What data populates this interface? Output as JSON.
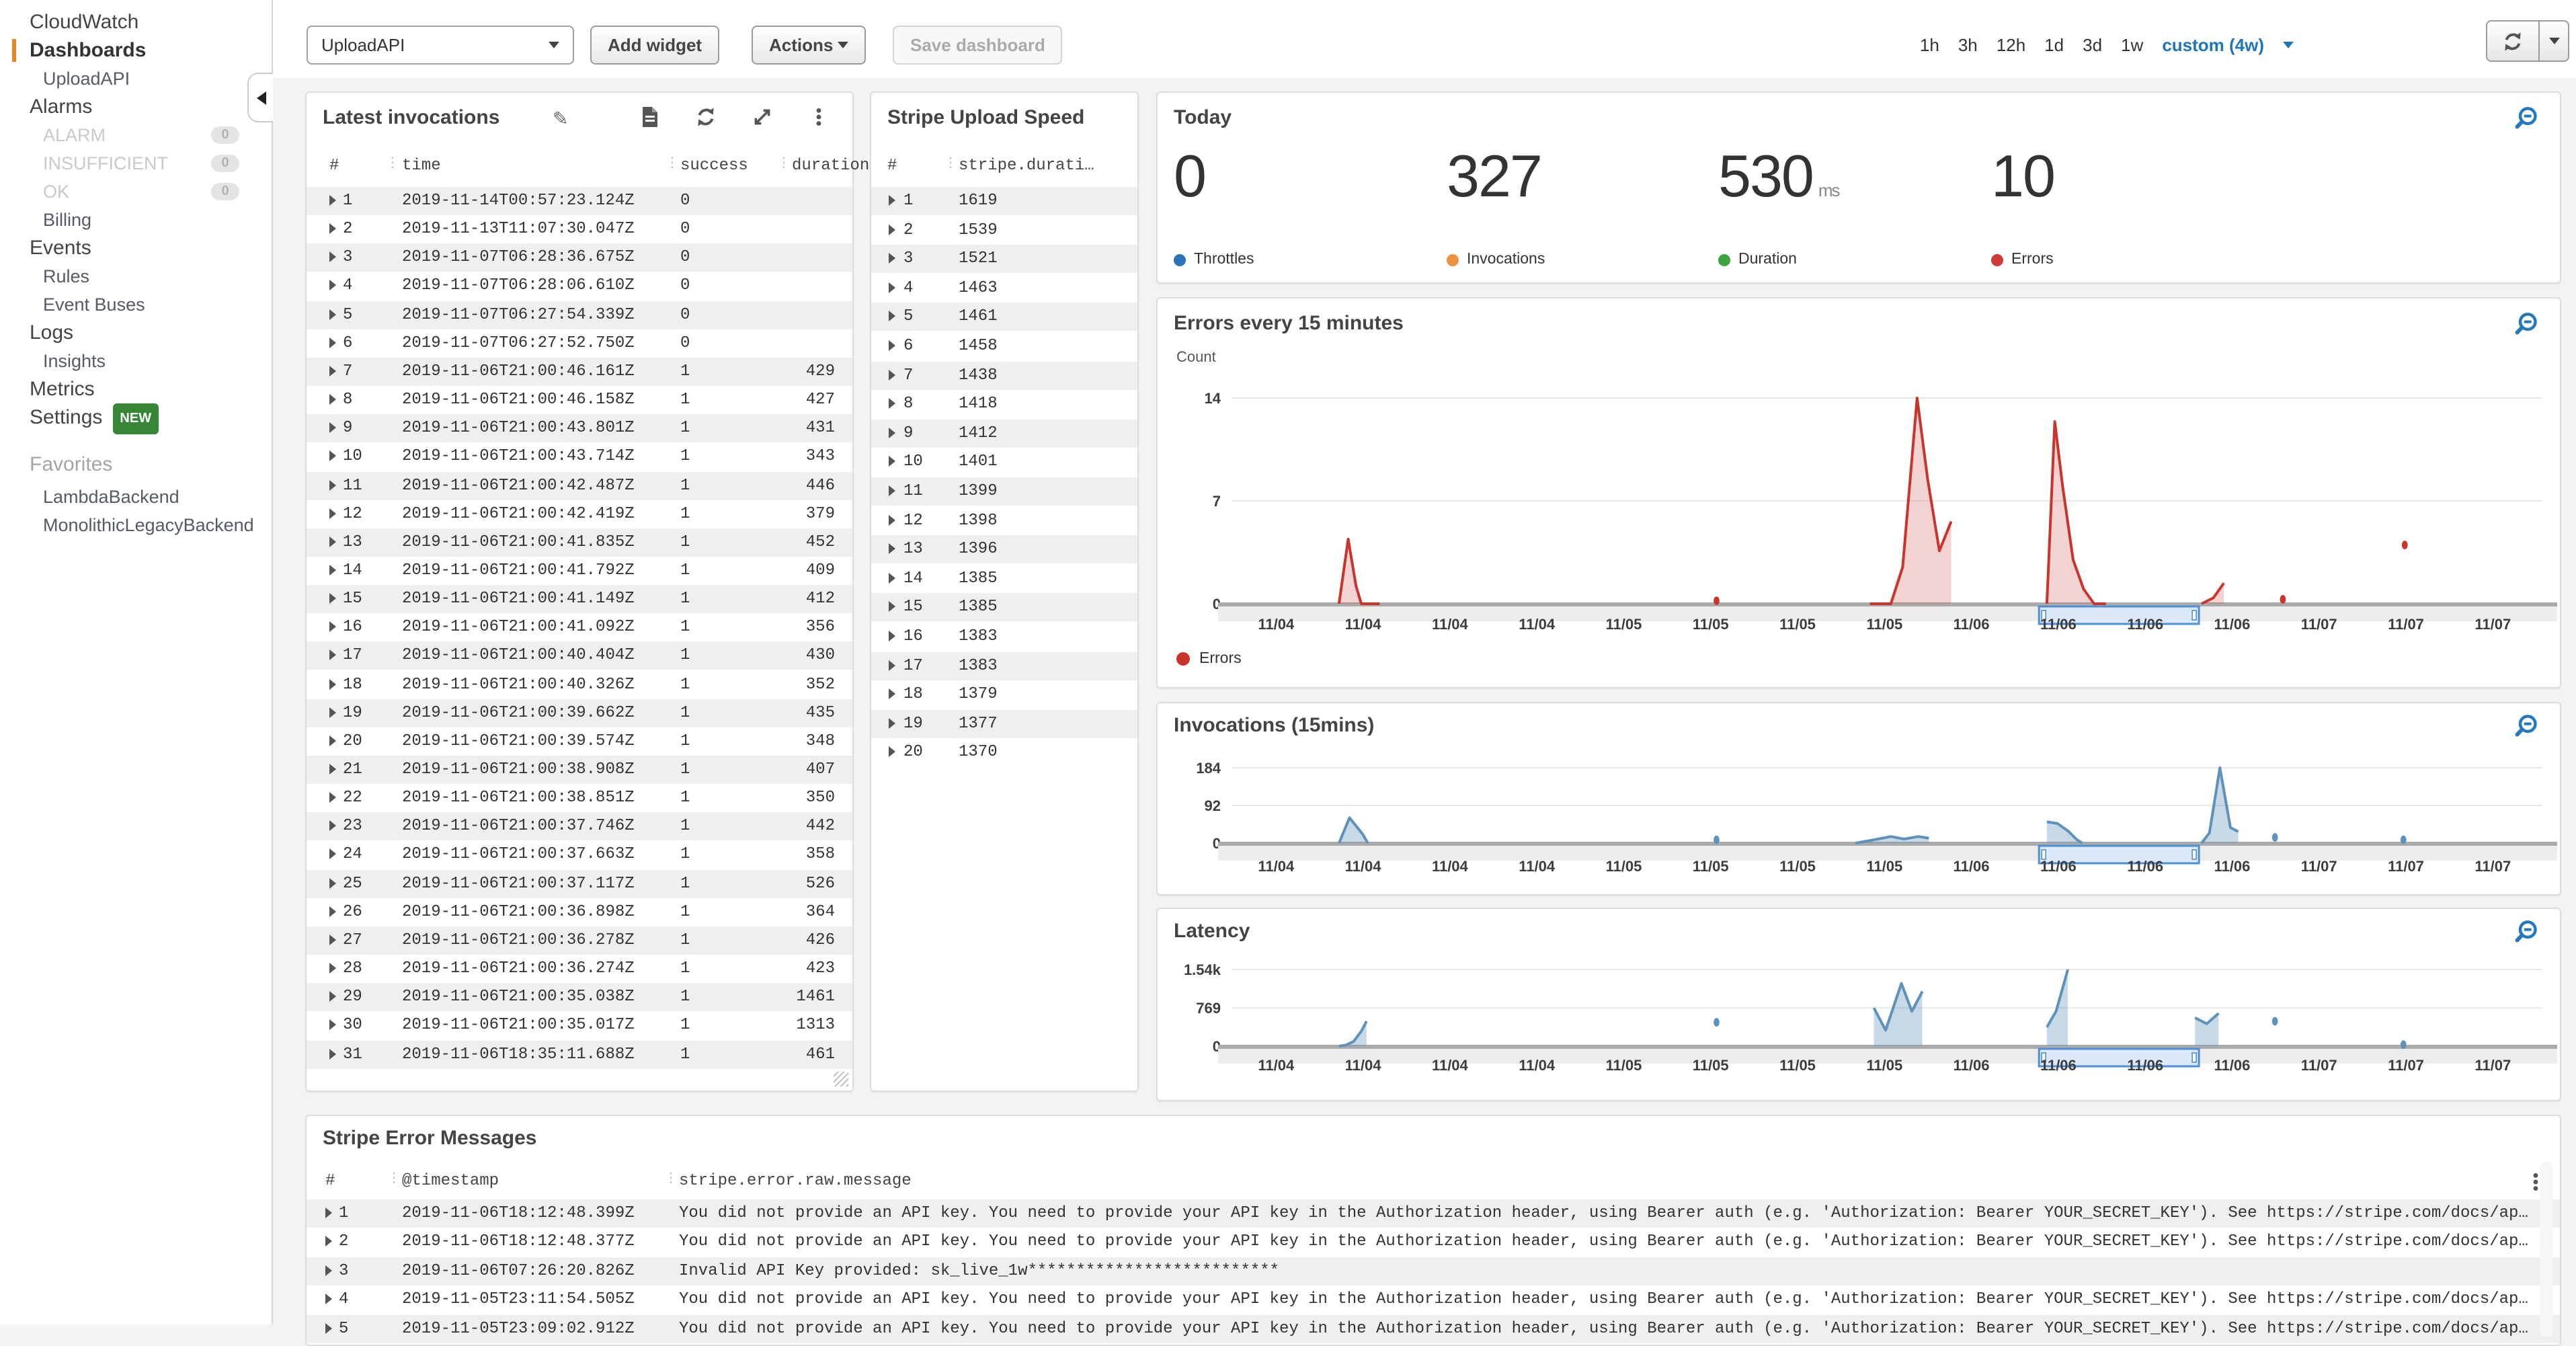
{
  "sidebar": {
    "title": "CloudWatch",
    "items": [
      {
        "label": "CloudWatch",
        "kind": "title"
      },
      {
        "label": "Dashboards",
        "kind": "section-active"
      },
      {
        "label": "UploadAPI",
        "kind": "sub"
      },
      {
        "label": "Alarms",
        "kind": "section"
      },
      {
        "label": "ALARM",
        "kind": "sub-muted",
        "badge": "0"
      },
      {
        "label": "INSUFFICIENT",
        "kind": "sub-muted",
        "badge": "0"
      },
      {
        "label": "OK",
        "kind": "sub-muted",
        "badge": "0"
      },
      {
        "label": "Billing",
        "kind": "sub"
      },
      {
        "label": "Events",
        "kind": "section"
      },
      {
        "label": "Rules",
        "kind": "sub"
      },
      {
        "label": "Event Buses",
        "kind": "sub"
      },
      {
        "label": "Logs",
        "kind": "section"
      },
      {
        "label": "Insights",
        "kind": "sub"
      },
      {
        "label": "Metrics",
        "kind": "section"
      },
      {
        "label": "Settings",
        "kind": "section",
        "badge_new": "NEW"
      },
      {
        "label": "Favorites",
        "kind": "group"
      },
      {
        "label": "LambdaBackend",
        "kind": "sub"
      },
      {
        "label": "MonolithicLegacyBackend",
        "kind": "sub"
      }
    ]
  },
  "topbar": {
    "dashboard_select": {
      "value": "UploadAPI"
    },
    "add_widget_label": "Add widget",
    "actions_label": "Actions",
    "save_label": "Save dashboard",
    "ranges": [
      "1h",
      "3h",
      "12h",
      "1d",
      "3d",
      "1w"
    ],
    "custom_label": "custom (4w)",
    "accent_blue": "#2074b8"
  },
  "widgets": {
    "latest_invocations": {
      "title": "Latest invocations",
      "columns": [
        "#",
        "time",
        "success",
        "duration"
      ],
      "rows": [
        [
          "1",
          "2019-11-14T00:57:23.124Z",
          "0",
          ""
        ],
        [
          "2",
          "2019-11-13T11:07:30.047Z",
          "0",
          ""
        ],
        [
          "3",
          "2019-11-07T06:28:36.675Z",
          "0",
          ""
        ],
        [
          "4",
          "2019-11-07T06:28:06.610Z",
          "0",
          ""
        ],
        [
          "5",
          "2019-11-07T06:27:54.339Z",
          "0",
          ""
        ],
        [
          "6",
          "2019-11-07T06:27:52.750Z",
          "0",
          ""
        ],
        [
          "7",
          "2019-11-06T21:00:46.161Z",
          "1",
          "429"
        ],
        [
          "8",
          "2019-11-06T21:00:46.158Z",
          "1",
          "427"
        ],
        [
          "9",
          "2019-11-06T21:00:43.801Z",
          "1",
          "431"
        ],
        [
          "10",
          "2019-11-06T21:00:43.714Z",
          "1",
          "343"
        ],
        [
          "11",
          "2019-11-06T21:00:42.487Z",
          "1",
          "446"
        ],
        [
          "12",
          "2019-11-06T21:00:42.419Z",
          "1",
          "379"
        ],
        [
          "13",
          "2019-11-06T21:00:41.835Z",
          "1",
          "452"
        ],
        [
          "14",
          "2019-11-06T21:00:41.792Z",
          "1",
          "409"
        ],
        [
          "15",
          "2019-11-06T21:00:41.149Z",
          "1",
          "412"
        ],
        [
          "16",
          "2019-11-06T21:00:41.092Z",
          "1",
          "356"
        ],
        [
          "17",
          "2019-11-06T21:00:40.404Z",
          "1",
          "430"
        ],
        [
          "18",
          "2019-11-06T21:00:40.326Z",
          "1",
          "352"
        ],
        [
          "19",
          "2019-11-06T21:00:39.662Z",
          "1",
          "435"
        ],
        [
          "20",
          "2019-11-06T21:00:39.574Z",
          "1",
          "348"
        ],
        [
          "21",
          "2019-11-06T21:00:38.908Z",
          "1",
          "407"
        ],
        [
          "22",
          "2019-11-06T21:00:38.851Z",
          "1",
          "350"
        ],
        [
          "23",
          "2019-11-06T21:00:37.746Z",
          "1",
          "442"
        ],
        [
          "24",
          "2019-11-06T21:00:37.663Z",
          "1",
          "358"
        ],
        [
          "25",
          "2019-11-06T21:00:37.117Z",
          "1",
          "526"
        ],
        [
          "26",
          "2019-11-06T21:00:36.898Z",
          "1",
          "364"
        ],
        [
          "27",
          "2019-11-06T21:00:36.278Z",
          "1",
          "426"
        ],
        [
          "28",
          "2019-11-06T21:00:36.274Z",
          "1",
          "423"
        ],
        [
          "29",
          "2019-11-06T21:00:35.038Z",
          "1",
          "1461"
        ],
        [
          "30",
          "2019-11-06T21:00:35.017Z",
          "1",
          "1313"
        ],
        [
          "31",
          "2019-11-06T18:35:11.688Z",
          "1",
          "461"
        ]
      ]
    },
    "stripe_upload_speed": {
      "title": "Stripe Upload Speed",
      "columns": [
        "#",
        "stripe.durati…"
      ],
      "rows": [
        [
          "1",
          "1619"
        ],
        [
          "2",
          "1539"
        ],
        [
          "3",
          "1521"
        ],
        [
          "4",
          "1463"
        ],
        [
          "5",
          "1461"
        ],
        [
          "6",
          "1458"
        ],
        [
          "7",
          "1438"
        ],
        [
          "8",
          "1418"
        ],
        [
          "9",
          "1412"
        ],
        [
          "10",
          "1401"
        ],
        [
          "11",
          "1399"
        ],
        [
          "12",
          "1398"
        ],
        [
          "13",
          "1396"
        ],
        [
          "14",
          "1385"
        ],
        [
          "15",
          "1385"
        ],
        [
          "16",
          "1383"
        ],
        [
          "17",
          "1383"
        ],
        [
          "18",
          "1379"
        ],
        [
          "19",
          "1377"
        ],
        [
          "20",
          "1370"
        ]
      ]
    },
    "today": {
      "title": "Today",
      "metrics": [
        {
          "value": "0",
          "unit": "",
          "label": "Throttles",
          "color": "#2e73b8"
        },
        {
          "value": "327",
          "unit": "",
          "label": "Invocations",
          "color": "#ec9342"
        },
        {
          "value": "530",
          "unit": "ms",
          "label": "Duration",
          "color": "#3fa344"
        },
        {
          "value": "10",
          "unit": "",
          "label": "Errors",
          "color": "#cc3c38"
        }
      ]
    },
    "stripe_errors": {
      "title": "Stripe Error Messages",
      "columns": [
        "#",
        "@timestamp",
        "stripe.error.raw.message"
      ],
      "rows": [
        [
          "1",
          "2019-11-06T18:12:48.399Z",
          "You did not provide an API key. You need to provide your API key in the Authorization header, using Bearer auth (e.g. 'Authorization: Bearer YOUR_SECRET_KEY'). See https://stripe.com/docs/ap…"
        ],
        [
          "2",
          "2019-11-06T18:12:48.377Z",
          "You did not provide an API key. You need to provide your API key in the Authorization header, using Bearer auth (e.g. 'Authorization: Bearer YOUR_SECRET_KEY'). See https://stripe.com/docs/ap…"
        ],
        [
          "3",
          "2019-11-06T07:26:20.826Z",
          "Invalid API Key provided: sk_live_1w**************************"
        ],
        [
          "4",
          "2019-11-05T23:11:54.505Z",
          "You did not provide an API key. You need to provide your API key in the Authorization header, using Bearer auth (e.g. 'Authorization: Bearer YOUR_SECRET_KEY'). See https://stripe.com/docs/ap…"
        ],
        [
          "5",
          "2019-11-05T23:09:02.912Z",
          "You did not provide an API key. You need to provide your API key in the Authorization header, using Bearer auth (e.g. 'Authorization: Bearer YOUR_SECRET_KEY'). See https://stripe.com/docs/ap…"
        ]
      ]
    }
  },
  "chart_data": [
    {
      "id": "errors",
      "type": "area",
      "title": "Errors every 15 minutes",
      "ylabel": "Count",
      "ylim": [
        0,
        14
      ],
      "yticks": [
        {
          "v": 0,
          "label": "0"
        },
        {
          "v": 7,
          "label": "7"
        },
        {
          "v": 14,
          "label": "14"
        }
      ],
      "xticklabels": [
        "11/04",
        "11/04",
        "11/04",
        "11/04",
        "11/05",
        "11/05",
        "11/05",
        "11/05",
        "11/06",
        "11/06",
        "11/06",
        "11/06",
        "11/07",
        "11/07",
        "11/07"
      ],
      "stroke": "#c9352d",
      "fill": "rgba(201,53,45,0.22)",
      "legend": [
        {
          "label": "Errors",
          "color": "#c9352d"
        }
      ],
      "segments": [
        [
          [
            0.082,
            0
          ],
          [
            0.089,
            4.4
          ],
          [
            0.095,
            1.2
          ],
          [
            0.099,
            0
          ],
          [
            0.113,
            0
          ]
        ],
        [
          [
            0.487,
            0
          ],
          [
            0.503,
            0
          ],
          [
            0.512,
            2.5
          ],
          [
            0.523,
            14
          ],
          [
            0.531,
            8.5
          ],
          [
            0.54,
            3.6
          ],
          [
            0.549,
            5.6
          ]
        ],
        [
          [
            0.622,
            0
          ],
          [
            0.628,
            12.4
          ],
          [
            0.634,
            8
          ],
          [
            0.642,
            3
          ],
          [
            0.65,
            1
          ],
          [
            0.658,
            0
          ],
          [
            0.667,
            0
          ]
        ],
        [
          [
            0.74,
            0
          ],
          [
            0.749,
            0.4
          ],
          [
            0.757,
            1.4
          ]
        ]
      ],
      "dots": [
        [
          0.37,
          0.2
        ],
        [
          0.802,
          0.3
        ],
        [
          0.895,
          4
        ]
      ],
      "selection": {
        "x0": 0.616,
        "x1": 0.738
      }
    },
    {
      "id": "invocations",
      "type": "area",
      "title": "Invocations (15mins)",
      "ylabel": "",
      "ylim": [
        0,
        184
      ],
      "yticks": [
        {
          "v": 0,
          "label": "0"
        },
        {
          "v": 92,
          "label": "92"
        },
        {
          "v": 184,
          "label": "184"
        }
      ],
      "xticklabels": [
        "11/04",
        "11/04",
        "11/04",
        "11/04",
        "11/05",
        "11/05",
        "11/05",
        "11/05",
        "11/06",
        "11/06",
        "11/06",
        "11/06",
        "11/07",
        "11/07",
        "11/07"
      ],
      "stroke": "#5e92ba",
      "fill": "rgba(94,146,186,0.35)",
      "legend": [],
      "segments": [
        [
          [
            0.082,
            0
          ],
          [
            0.09,
            62
          ],
          [
            0.1,
            22
          ],
          [
            0.104,
            0
          ]
        ],
        [
          [
            0.476,
            0
          ],
          [
            0.49,
            8
          ],
          [
            0.503,
            16
          ],
          [
            0.513,
            10
          ],
          [
            0.524,
            16
          ],
          [
            0.532,
            12
          ]
        ],
        [
          [
            0.622,
            52
          ],
          [
            0.63,
            48
          ],
          [
            0.638,
            30
          ],
          [
            0.645,
            8
          ],
          [
            0.649,
            0
          ]
        ],
        [
          [
            0.74,
            0
          ],
          [
            0.746,
            25
          ],
          [
            0.754,
            184
          ],
          [
            0.762,
            38
          ],
          [
            0.768,
            28
          ]
        ]
      ],
      "dots": [
        [
          0.37,
          8
        ],
        [
          0.796,
          14
        ],
        [
          0.894,
          8
        ]
      ],
      "selection": {
        "x0": 0.616,
        "x1": 0.738
      }
    },
    {
      "id": "latency",
      "type": "area",
      "title": "Latency",
      "ylabel": "",
      "ylim": [
        0,
        1540
      ],
      "yticks": [
        {
          "v": 0,
          "label": "0"
        },
        {
          "v": 769,
          "label": "769"
        },
        {
          "v": 1540,
          "label": "1.54k"
        }
      ],
      "xticklabels": [
        "11/04",
        "11/04",
        "11/04",
        "11/04",
        "11/05",
        "11/05",
        "11/05",
        "11/05",
        "11/06",
        "11/06",
        "11/06",
        "11/06",
        "11/07",
        "11/07",
        "11/07"
      ],
      "stroke": "#5e92ba",
      "fill": "rgba(94,146,186,0.35)",
      "legend": [],
      "segments": [
        [
          [
            0.082,
            0
          ],
          [
            0.087,
            20
          ],
          [
            0.093,
            90
          ],
          [
            0.099,
            300
          ],
          [
            0.103,
            500
          ]
        ],
        [
          [
            0.49,
            769
          ],
          [
            0.499,
            320
          ],
          [
            0.511,
            1260
          ],
          [
            0.519,
            700
          ],
          [
            0.527,
            1100
          ]
        ],
        [
          [
            0.622,
            380
          ],
          [
            0.629,
            700
          ],
          [
            0.638,
            1540
          ]
        ],
        [
          [
            0.735,
            570
          ],
          [
            0.744,
            450
          ],
          [
            0.753,
            660
          ]
        ]
      ],
      "dots": [
        [
          0.37,
          480
        ],
        [
          0.796,
          500
        ],
        [
          0.894,
          30
        ]
      ],
      "selection": {
        "x0": 0.616,
        "x1": 0.738
      }
    }
  ]
}
